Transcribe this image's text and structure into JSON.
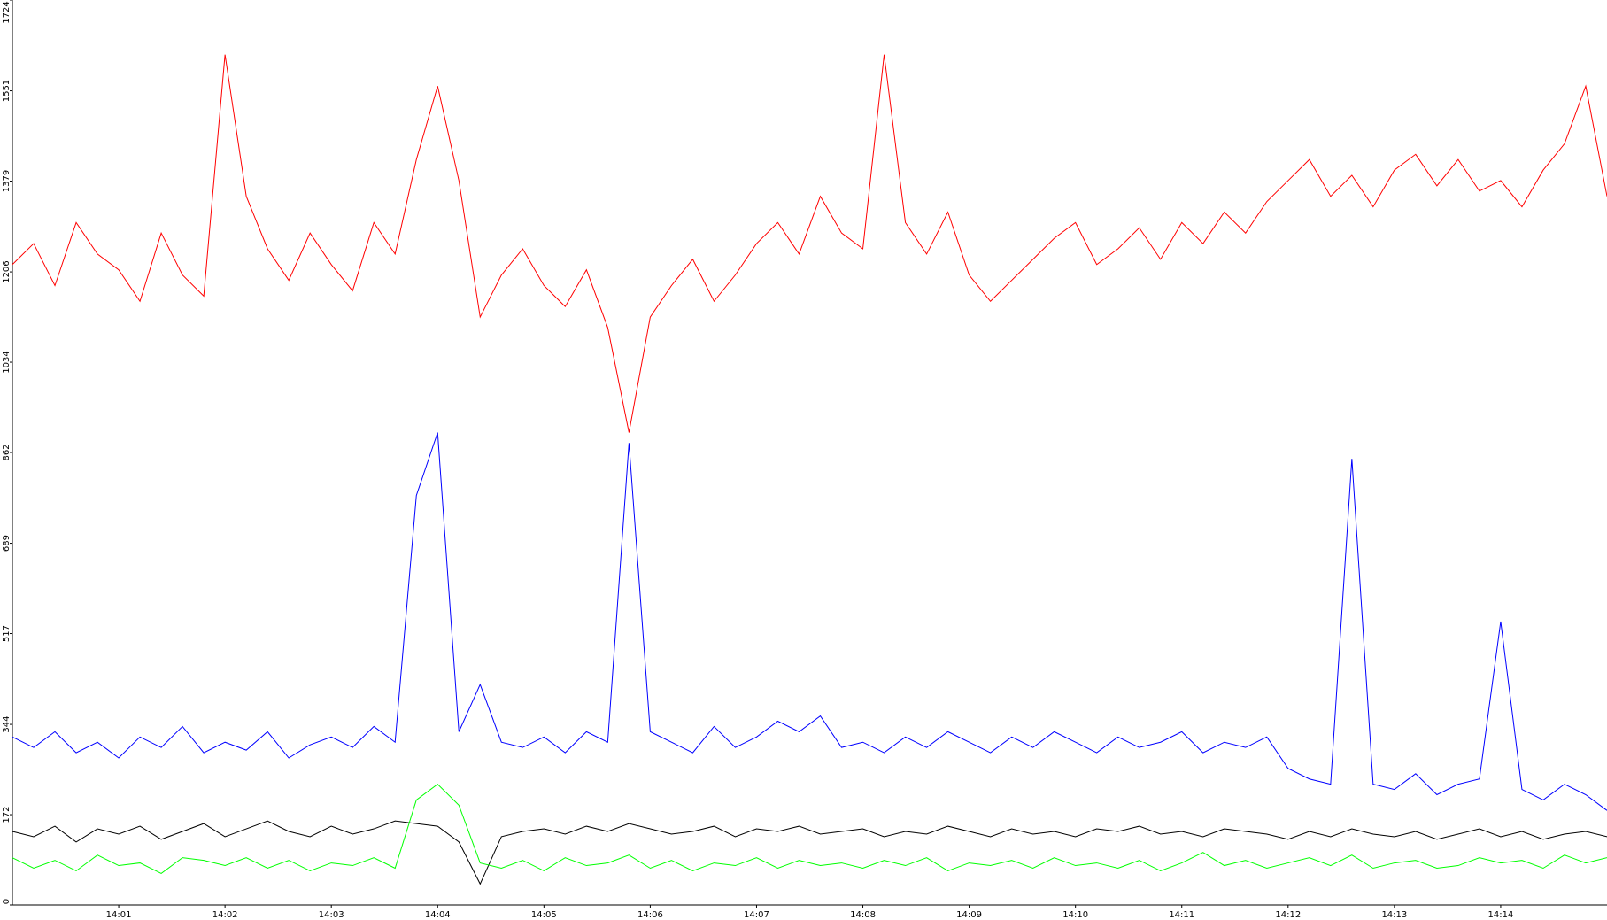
{
  "chart_data": {
    "type": "line",
    "x": [
      0,
      0.2,
      0.4,
      0.6,
      0.8,
      1,
      1.2,
      1.4,
      1.6,
      1.8,
      2,
      2.2,
      2.4,
      2.6,
      2.8,
      3,
      3.2,
      3.4,
      3.6,
      3.8,
      4,
      4.2,
      4.4,
      4.6,
      4.8,
      5,
      5.2,
      5.4,
      5.6,
      5.8,
      6,
      6.2,
      6.4,
      6.6,
      6.8,
      7,
      7.2,
      7.4,
      7.6,
      7.8,
      8,
      8.2,
      8.4,
      8.6,
      8.8,
      9,
      9.2,
      9.4,
      9.6,
      9.8,
      10,
      10.2,
      10.4,
      10.6,
      10.8,
      11,
      11.2,
      11.4,
      11.6,
      11.8,
      12,
      12.2,
      12.4,
      12.6,
      12.8,
      13,
      13.2,
      13.4,
      13.6,
      13.8,
      14,
      14.2,
      14.4,
      14.6,
      14.8,
      15
    ],
    "series": [
      {
        "color": "#ff0000",
        "values": [
          1220,
          1260,
          1180,
          1300,
          1240,
          1210,
          1150,
          1280,
          1200,
          1160,
          1620,
          1350,
          1250,
          1190,
          1280,
          1220,
          1170,
          1300,
          1240,
          1420,
          1560,
          1380,
          1120,
          1200,
          1250,
          1180,
          1140,
          1210,
          1100,
          900,
          1120,
          1180,
          1230,
          1150,
          1200,
          1260,
          1300,
          1240,
          1350,
          1280,
          1250,
          1620,
          1300,
          1240,
          1320,
          1200,
          1150,
          1190,
          1230,
          1270,
          1300,
          1220,
          1250,
          1290,
          1230,
          1300,
          1260,
          1320,
          1280,
          1340,
          1380,
          1420,
          1350,
          1390,
          1330,
          1400,
          1430,
          1370,
          1420,
          1360,
          1380,
          1330,
          1400,
          1450,
          1560,
          1350
        ]
      },
      {
        "color": "#0000ff",
        "values": [
          320,
          300,
          330,
          290,
          310,
          280,
          320,
          300,
          340,
          290,
          310,
          295,
          330,
          280,
          305,
          320,
          300,
          340,
          310,
          780,
          900,
          330,
          420,
          310,
          300,
          320,
          290,
          330,
          310,
          880,
          330,
          310,
          290,
          340,
          300,
          320,
          350,
          330,
          360,
          300,
          310,
          290,
          320,
          300,
          330,
          310,
          290,
          320,
          300,
          330,
          310,
          290,
          320,
          300,
          310,
          330,
          290,
          310,
          300,
          320,
          260,
          240,
          230,
          850,
          230,
          220,
          250,
          210,
          230,
          240,
          540,
          220,
          200,
          230,
          210,
          180
        ]
      },
      {
        "color": "#000000",
        "values": [
          140,
          130,
          150,
          120,
          145,
          135,
          150,
          125,
          140,
          155,
          130,
          145,
          160,
          140,
          130,
          150,
          135,
          145,
          160,
          155,
          150,
          120,
          40,
          130,
          140,
          145,
          135,
          150,
          140,
          155,
          145,
          135,
          140,
          150,
          130,
          145,
          140,
          150,
          135,
          140,
          145,
          130,
          140,
          135,
          150,
          140,
          130,
          145,
          135,
          140,
          130,
          145,
          140,
          150,
          135,
          140,
          130,
          145,
          140,
          135,
          125,
          140,
          130,
          145,
          135,
          130,
          140,
          125,
          135,
          145,
          130,
          140,
          125,
          135,
          140,
          130
        ]
      },
      {
        "color": "#00ff00",
        "values": [
          90,
          70,
          85,
          65,
          95,
          75,
          80,
          60,
          90,
          85,
          75,
          90,
          70,
          85,
          65,
          80,
          75,
          90,
          70,
          200,
          230,
          190,
          80,
          70,
          85,
          65,
          90,
          75,
          80,
          95,
          70,
          85,
          65,
          80,
          75,
          90,
          70,
          85,
          75,
          80,
          70,
          85,
          75,
          90,
          65,
          80,
          75,
          85,
          70,
          90,
          75,
          80,
          70,
          85,
          65,
          80,
          100,
          75,
          85,
          70,
          80,
          90,
          75,
          95,
          70,
          80,
          85,
          70,
          75,
          90,
          80,
          85,
          70,
          95,
          80,
          90
        ]
      }
    ],
    "xlim": [
      0,
      15
    ],
    "xticks": [
      {
        "value": 1,
        "label": "14:01"
      },
      {
        "value": 2,
        "label": "14:02"
      },
      {
        "value": 3,
        "label": "14:03"
      },
      {
        "value": 4,
        "label": "14:04"
      },
      {
        "value": 5,
        "label": "14:05"
      },
      {
        "value": 6,
        "label": "14:06"
      },
      {
        "value": 7,
        "label": "14:07"
      },
      {
        "value": 8,
        "label": "14:08"
      },
      {
        "value": 9,
        "label": "14:09"
      },
      {
        "value": 10,
        "label": "14:10"
      },
      {
        "value": 11,
        "label": "14:11"
      },
      {
        "value": 12,
        "label": "14:12"
      },
      {
        "value": 13,
        "label": "14:13"
      },
      {
        "value": 14,
        "label": "14:14"
      }
    ],
    "ylim": [
      0,
      1724
    ],
    "yticks": [
      0,
      172,
      344,
      517,
      689,
      862,
      1034,
      1206,
      1379,
      1551,
      1724
    ]
  }
}
